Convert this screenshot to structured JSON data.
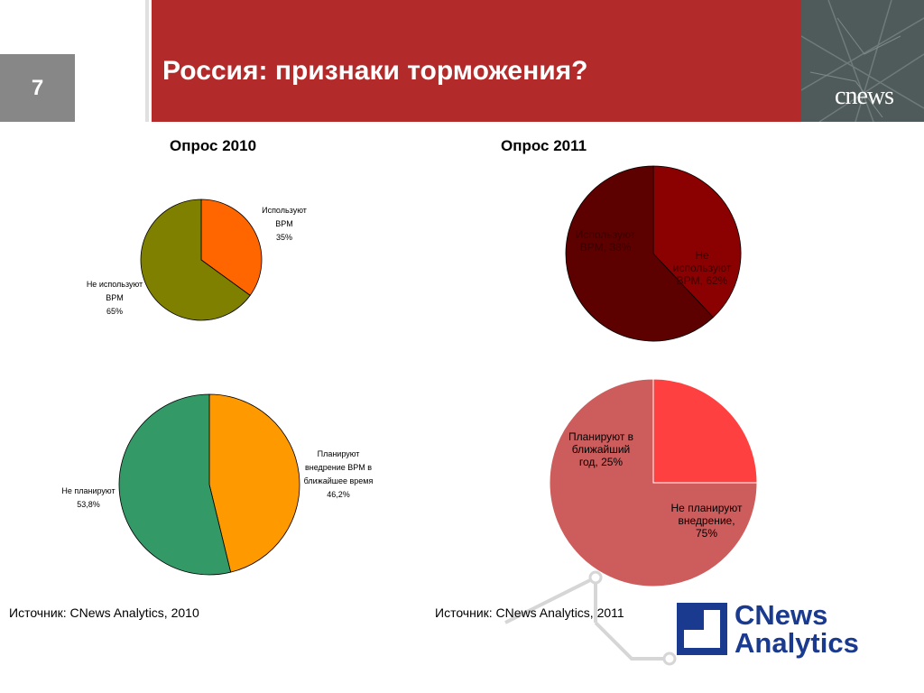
{
  "slide": {
    "number": "7",
    "title": "Россия: признаки торможения?"
  },
  "brand": {
    "header_logo": "cnews",
    "logo_line1": "CNews",
    "logo_line2": "Analytics"
  },
  "colors": {
    "header": "#b22a2a",
    "logo_blue": "#1a3a8f",
    "bpm_2010_use": "#ff6600",
    "bpm_2010_not": "#808000",
    "bpm_2011_use": "#8b0000",
    "bpm_2011_not": "#5c0000",
    "plan_2010_yes": "#ff9900",
    "plan_2010_no": "#339966",
    "plan_2011_yes": "#ff4040",
    "plan_2011_no": "#cd5c5c"
  },
  "surveys": {
    "y2010_title": "Опрос 2010",
    "y2011_title": "Опрос 2011"
  },
  "sources": {
    "s2010": "Источник: CNews Analytics, 2010",
    "s2011": "Источник: CNews Analytics, 2011"
  },
  "labels": {
    "bpm2010_use": [
      "Используют",
      "BPM",
      "35%"
    ],
    "bpm2010_not": [
      "Не используют",
      "BPM",
      "65%"
    ],
    "bpm2011_use": [
      "Используют",
      "BPM, 38%"
    ],
    "bpm2011_not": [
      "Не",
      "используют",
      "BPM, 62%"
    ],
    "plan2010_yes": [
      "Планируют",
      "внедрение BPM в",
      "ближайшее время",
      "46,2%"
    ],
    "plan2010_no": [
      "Не планируют",
      "53,8%"
    ],
    "plan2011_yes": [
      "Планируют в",
      "ближайший",
      "год, 25%"
    ],
    "plan2011_no": [
      "Не планируют",
      "внедрение,",
      "75%"
    ]
  },
  "chart_data": [
    {
      "type": "pie",
      "title": "Опрос 2010",
      "categories": [
        "Используют BPM",
        "Не используют BPM"
      ],
      "values": [
        35,
        65
      ],
      "colors": [
        "#ff6600",
        "#808000"
      ]
    },
    {
      "type": "pie",
      "title": "Опрос 2011",
      "categories": [
        "Используют BPM",
        "Не используют BPM"
      ],
      "values": [
        38,
        62
      ],
      "colors": [
        "#8b0000",
        "#5c0000"
      ]
    },
    {
      "type": "pie",
      "title": "Опрос 2010",
      "categories": [
        "Планируют внедрение BPM в ближайшее время",
        "Не планируют"
      ],
      "values": [
        46.2,
        53.8
      ],
      "colors": [
        "#ff9900",
        "#339966"
      ]
    },
    {
      "type": "pie",
      "title": "Опрос 2011",
      "categories": [
        "Планируют в ближайший год",
        "Не планируют внедрение"
      ],
      "values": [
        25,
        75
      ],
      "colors": [
        "#ff4040",
        "#cd5c5c"
      ]
    }
  ]
}
